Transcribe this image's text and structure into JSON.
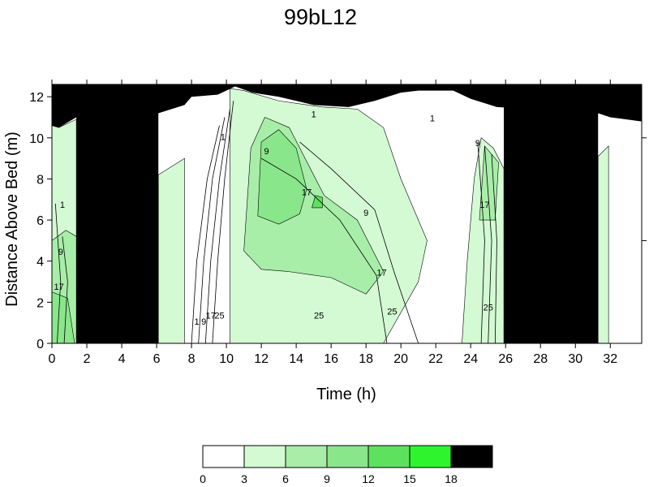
{
  "chart_data": {
    "type": "heatmap",
    "title": "99bL12",
    "xlabel": "Time (h)",
    "ylabel": "Distance Above Bed (m)",
    "xlim": [
      0,
      33.8
    ],
    "ylim": [
      0,
      12.6
    ],
    "x_ticks": [
      "0",
      "2",
      "4",
      "6",
      "8",
      "10",
      "12",
      "14",
      "16",
      "18",
      "20",
      "22",
      "24",
      "26",
      "28",
      "30",
      "32"
    ],
    "y_ticks": [
      "0",
      "2",
      "4",
      "6",
      "8",
      "10",
      "12"
    ],
    "colorbar": {
      "tick_labels": [
        "0",
        "3",
        "6",
        "9",
        "12",
        "15",
        "18"
      ],
      "colors": [
        "#ffffff",
        "#d4fad4",
        "#a8eea8",
        "#8ae68a",
        "#5ee25e",
        "#2ef42e",
        "#000000"
      ]
    },
    "masked_color": "#000000",
    "masked_time_ranges": [
      [
        1.4,
        6.1
      ],
      [
        25.9,
        31.3
      ]
    ],
    "surface_profile": [
      [
        0,
        10.6
      ],
      [
        0.4,
        10.5
      ],
      [
        1.4,
        11.0
      ],
      [
        6.1,
        11.2
      ],
      [
        7.6,
        11.6
      ],
      [
        8.0,
        12.0
      ],
      [
        9.5,
        12.1
      ],
      [
        10.5,
        12.5
      ],
      [
        11.5,
        12.2
      ],
      [
        13.0,
        12.0
      ],
      [
        15.0,
        11.6
      ],
      [
        17.0,
        11.5
      ],
      [
        18.5,
        11.8
      ],
      [
        20.0,
        12.2
      ],
      [
        21.0,
        12.3
      ],
      [
        23.0,
        12.3
      ],
      [
        24.0,
        11.9
      ],
      [
        25.5,
        11.5
      ],
      [
        31.3,
        11.2
      ],
      [
        32.0,
        11.0
      ],
      [
        33.8,
        10.8
      ]
    ],
    "fill_regions": [
      {
        "level": 1,
        "points": [
          [
            0,
            0
          ],
          [
            0,
            10.6
          ],
          [
            0.4,
            10.5
          ],
          [
            1.4,
            10.9
          ],
          [
            1.4,
            0
          ]
        ]
      },
      {
        "level": 1,
        "points": [
          [
            6.1,
            0
          ],
          [
            6.1,
            8.2
          ],
          [
            7.6,
            9.0
          ],
          [
            7.6,
            0
          ]
        ]
      },
      {
        "level": 1,
        "points": [
          [
            10.2,
            0
          ],
          [
            10.2,
            12.4
          ],
          [
            11.0,
            12.3
          ],
          [
            13.0,
            11.8
          ],
          [
            15.5,
            11.5
          ],
          [
            17.5,
            11.4
          ],
          [
            19.0,
            10.5
          ],
          [
            20.0,
            8.0
          ],
          [
            21.5,
            5.0
          ],
          [
            21.0,
            3.0
          ],
          [
            20.0,
            1.5
          ],
          [
            19.0,
            0
          ]
        ]
      },
      {
        "level": 1,
        "points": [
          [
            23.5,
            0
          ],
          [
            23.8,
            4.0
          ],
          [
            24.2,
            8.0
          ],
          [
            24.6,
            10.0
          ],
          [
            25.3,
            9.5
          ],
          [
            25.9,
            8.5
          ],
          [
            25.9,
            0
          ]
        ]
      },
      {
        "level": 1,
        "points": [
          [
            31.3,
            0
          ],
          [
            31.3,
            9.1
          ],
          [
            31.9,
            9.6
          ],
          [
            31.9,
            0
          ]
        ]
      },
      {
        "level": 2,
        "points": [
          [
            0,
            0
          ],
          [
            0,
            5.0
          ],
          [
            0.8,
            5.5
          ],
          [
            1.4,
            5.2
          ],
          [
            1.4,
            0
          ]
        ]
      },
      {
        "level": 2,
        "points": [
          [
            11.0,
            4.5
          ],
          [
            11.4,
            9.5
          ],
          [
            12.2,
            11.0
          ],
          [
            13.6,
            10.5
          ],
          [
            15.6,
            7.2
          ],
          [
            17.5,
            6.0
          ],
          [
            19.0,
            3.5
          ],
          [
            18.0,
            2.4
          ],
          [
            16.0,
            3.2
          ],
          [
            13.5,
            3.5
          ],
          [
            12.0,
            3.6
          ]
        ]
      },
      {
        "level": 2,
        "points": [
          [
            24.5,
            6.0
          ],
          [
            24.8,
            9.6
          ],
          [
            25.6,
            8.8
          ],
          [
            25.4,
            6.0
          ]
        ]
      },
      {
        "level": 3,
        "points": [
          [
            11.8,
            6.2
          ],
          [
            12.0,
            9.8
          ],
          [
            13.0,
            10.4
          ],
          [
            14.0,
            9.5
          ],
          [
            14.6,
            7.5
          ],
          [
            14.2,
            6.3
          ],
          [
            13.0,
            5.8
          ]
        ]
      },
      {
        "level": 3,
        "points": [
          [
            0,
            0
          ],
          [
            0,
            2.5
          ],
          [
            0.9,
            2.2
          ],
          [
            1.3,
            0
          ]
        ]
      },
      {
        "level": 4,
        "points": [
          [
            14.9,
            6.6
          ],
          [
            15.1,
            7.2
          ],
          [
            15.5,
            7.1
          ],
          [
            15.5,
            6.6
          ]
        ]
      }
    ],
    "contour_labels": [
      {
        "text": "1",
        "x": 9.8,
        "y": 9.9
      },
      {
        "text": "9",
        "x": 12.3,
        "y": 9.2
      },
      {
        "text": "1",
        "x": 15.0,
        "y": 11.0
      },
      {
        "text": "1",
        "x": 21.8,
        "y": 10.8
      },
      {
        "text": "17",
        "x": 14.6,
        "y": 7.2
      },
      {
        "text": "9",
        "x": 18.0,
        "y": 6.2
      },
      {
        "text": "17",
        "x": 18.9,
        "y": 3.3
      },
      {
        "text": "25",
        "x": 15.3,
        "y": 1.2
      },
      {
        "text": "25",
        "x": 19.5,
        "y": 1.4
      },
      {
        "text": "1",
        "x": 8.3,
        "y": 0.9
      },
      {
        "text": "9",
        "x": 8.7,
        "y": 0.9
      },
      {
        "text": "17",
        "x": 9.1,
        "y": 1.2
      },
      {
        "text": "25",
        "x": 9.6,
        "y": 1.2
      },
      {
        "text": "9",
        "x": 24.4,
        "y": 9.6
      },
      {
        "text": "17",
        "x": 24.8,
        "y": 6.6
      },
      {
        "text": "25",
        "x": 25.0,
        "y": 1.6
      },
      {
        "text": "1",
        "x": 0.6,
        "y": 6.6
      },
      {
        "text": "9",
        "x": 0.5,
        "y": 4.3
      },
      {
        "text": "17",
        "x": 0.4,
        "y": 2.6
      }
    ],
    "grid": false
  }
}
